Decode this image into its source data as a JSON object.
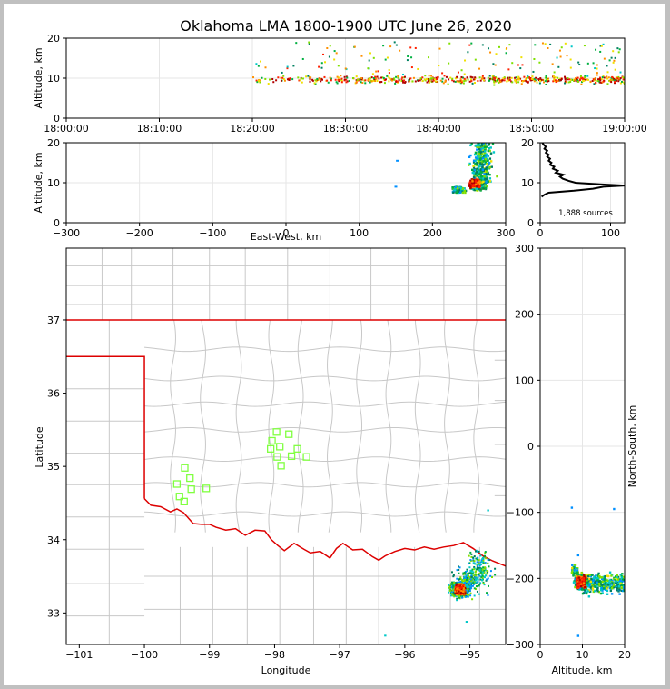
{
  "title": "Oklahoma LMA 1800-1900 UTC June 26, 2020",
  "colors": {
    "background_border": "#c0c0c0",
    "state_border": "#dd0000",
    "county_lines": "#c8c8c8",
    "stations": "#80ff40",
    "grid": "#e6e6e6",
    "profile_line": "#000000",
    "source_colors": [
      "#0000c8",
      "#0090ff",
      "#00c8c8",
      "#008060",
      "#00b040",
      "#80e000",
      "#f0e000",
      "#ff9000",
      "#ff2000",
      "#b00000"
    ]
  },
  "chart_data": [
    {
      "id": "time_height",
      "type": "scatter",
      "xlabel": "",
      "ylabel": "Altitude, km",
      "ylim": [
        0,
        20
      ],
      "yticks": [
        "0",
        "10",
        "20"
      ],
      "xticks": [
        "18:00:00",
        "18:10:00",
        "18:20:00",
        "18:30:00",
        "18:40:00",
        "18:50:00",
        "19:00:00"
      ],
      "xlim_minutes": [
        0,
        60
      ],
      "series_summary": "VHF sources from about 18:20 to 19:00, mostly at 8-11 km altitude, some to 18 km"
    },
    {
      "id": "ew_height",
      "type": "scatter",
      "xlabel": "East-West, km",
      "ylabel": "Altitude, km",
      "xlim": [
        -300,
        300
      ],
      "ylim": [
        0,
        20
      ],
      "xticks": [
        "−300",
        "−200",
        "−100",
        "0",
        "100",
        "200",
        "300"
      ],
      "yticks": [
        "0",
        "10",
        "20"
      ],
      "series_summary": "Dense cluster at about 220-300 km east, 7-20 km altitude; isolated sources near 150 km"
    },
    {
      "id": "altitude_histogram",
      "type": "line",
      "xlim": [
        0,
        120
      ],
      "ylim": [
        0,
        20
      ],
      "xticks": [
        "0",
        "100"
      ],
      "yticks": [
        "0",
        "10",
        "20"
      ],
      "annotation": "1,888 sources",
      "profile": [
        {
          "alt": 6.5,
          "count": 2
        },
        {
          "alt": 7.0,
          "count": 6
        },
        {
          "alt": 7.5,
          "count": 12
        },
        {
          "alt": 8.0,
          "count": 48
        },
        {
          "alt": 8.5,
          "count": 75
        },
        {
          "alt": 9.0,
          "count": 90
        },
        {
          "alt": 9.3,
          "count": 120
        },
        {
          "alt": 9.6,
          "count": 85
        },
        {
          "alt": 10.0,
          "count": 50
        },
        {
          "alt": 10.5,
          "count": 40
        },
        {
          "alt": 11.0,
          "count": 32
        },
        {
          "alt": 11.5,
          "count": 28
        },
        {
          "alt": 12.0,
          "count": 33
        },
        {
          "alt": 12.5,
          "count": 22
        },
        {
          "alt": 13.0,
          "count": 25
        },
        {
          "alt": 13.5,
          "count": 18
        },
        {
          "alt": 14.0,
          "count": 20
        },
        {
          "alt": 14.5,
          "count": 14
        },
        {
          "alt": 15.0,
          "count": 16
        },
        {
          "alt": 15.5,
          "count": 12
        },
        {
          "alt": 16.0,
          "count": 14
        },
        {
          "alt": 16.5,
          "count": 10
        },
        {
          "alt": 17.0,
          "count": 12
        },
        {
          "alt": 17.5,
          "count": 8
        },
        {
          "alt": 18.0,
          "count": 10
        },
        {
          "alt": 18.5,
          "count": 6
        },
        {
          "alt": 19.0,
          "count": 8
        },
        {
          "alt": 19.5,
          "count": 5
        },
        {
          "alt": 20.0,
          "count": 3
        }
      ]
    },
    {
      "id": "plan_view",
      "type": "scatter",
      "xlabel": "Longitude",
      "ylabel": "Latitude",
      "xlim": [
        -101.2,
        -94.45
      ],
      "ylim": [
        32.57,
        37.98
      ],
      "xticks": [
        "−101",
        "−100",
        "−99",
        "−98",
        "−97",
        "−96",
        "−95"
      ],
      "yticks": [
        "33",
        "34",
        "35",
        "36",
        "37"
      ],
      "stations": [
        {
          "lon": -97.97,
          "lat": 35.47
        },
        {
          "lon": -97.78,
          "lat": 35.44
        },
        {
          "lon": -98.04,
          "lat": 35.35
        },
        {
          "lon": -97.92,
          "lat": 35.27
        },
        {
          "lon": -98.06,
          "lat": 35.24
        },
        {
          "lon": -97.65,
          "lat": 35.24
        },
        {
          "lon": -97.96,
          "lat": 35.13
        },
        {
          "lon": -97.74,
          "lat": 35.14
        },
        {
          "lon": -97.51,
          "lat": 35.13
        },
        {
          "lon": -97.9,
          "lat": 35.01
        },
        {
          "lon": -99.38,
          "lat": 34.98
        },
        {
          "lon": -99.3,
          "lat": 34.84
        },
        {
          "lon": -99.5,
          "lat": 34.76
        },
        {
          "lon": -99.28,
          "lat": 34.69
        },
        {
          "lon": -99.05,
          "lat": 34.7
        },
        {
          "lon": -99.46,
          "lat": 34.59
        },
        {
          "lon": -99.39,
          "lat": 34.52
        }
      ],
      "series_summary": "Storm cluster near 95.2 W, 33.3 N in southeastern Oklahoma / northeastern Texas"
    },
    {
      "id": "ns_height",
      "type": "scatter",
      "xlabel": "Altitude, km",
      "ylabel": "North-South, km",
      "xlim": [
        0,
        20
      ],
      "ylim": [
        -300,
        300
      ],
      "xticks": [
        "0",
        "10",
        "20"
      ],
      "yticks": [
        "−300",
        "−200",
        "−100",
        "0",
        "100",
        "200",
        "300"
      ],
      "series_summary": "Cluster at about -240 to -170 km north-south, 7-20 km altitude"
    }
  ]
}
